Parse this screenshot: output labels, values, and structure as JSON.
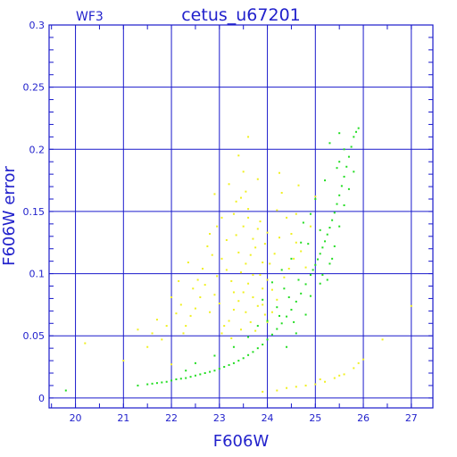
{
  "chart_data": {
    "type": "scatter",
    "title": "cetus_u67201",
    "corner_label": "WF3",
    "xlabel": "F606W",
    "ylabel": "F606W error",
    "xlim": [
      19.45,
      27.45
    ],
    "ylim": [
      -0.008,
      0.3
    ],
    "xticks": [
      20,
      21,
      22,
      23,
      24,
      25,
      26,
      27
    ],
    "yticks": [
      0,
      0.05,
      0.1,
      0.15,
      0.2,
      0.25,
      0.3
    ],
    "ytick_labels": [
      "0",
      "0.05",
      "0.1",
      "0.15",
      "0.2",
      "0.25",
      "0.3"
    ],
    "grid": true,
    "colors": {
      "axis": "#2222cc",
      "grid": "#1a1acc",
      "series_green": "#22dd22",
      "series_yellow": "#f0f020"
    },
    "series": [
      {
        "color": "yellow",
        "points": [
          [
            23.2,
            0.062
          ],
          [
            23.3,
            0.071
          ],
          [
            23.4,
            0.078
          ],
          [
            23.5,
            0.085
          ],
          [
            23.6,
            0.092
          ],
          [
            23.7,
            0.081
          ],
          [
            23.8,
            0.074
          ],
          [
            23.9,
            0.088
          ],
          [
            24.0,
            0.095
          ],
          [
            23.45,
            0.101
          ],
          [
            23.55,
            0.108
          ],
          [
            23.65,
            0.115
          ],
          [
            23.75,
            0.121
          ],
          [
            23.85,
            0.099
          ],
          [
            23.95,
            0.067
          ],
          [
            23.1,
            0.058
          ],
          [
            23.0,
            0.076
          ],
          [
            22.9,
            0.083
          ],
          [
            22.8,
            0.069
          ],
          [
            22.7,
            0.091
          ],
          [
            23.35,
            0.131
          ],
          [
            23.5,
            0.138
          ],
          [
            23.6,
            0.145
          ],
          [
            23.7,
            0.128
          ],
          [
            23.8,
            0.136
          ],
          [
            23.4,
            0.117
          ],
          [
            23.25,
            0.094
          ],
          [
            23.15,
            0.103
          ],
          [
            23.05,
            0.112
          ],
          [
            22.95,
            0.098
          ],
          [
            23.6,
            0.152
          ],
          [
            23.45,
            0.161
          ],
          [
            23.3,
            0.148
          ],
          [
            23.85,
            0.142
          ],
          [
            23.95,
            0.124
          ],
          [
            24.05,
            0.108
          ],
          [
            24.15,
            0.116
          ],
          [
            24.25,
            0.129
          ],
          [
            24.1,
            0.087
          ],
          [
            24.2,
            0.079
          ],
          [
            22.6,
            0.081
          ],
          [
            22.5,
            0.072
          ],
          [
            22.4,
            0.066
          ],
          [
            22.3,
            0.058
          ],
          [
            22.55,
            0.095
          ],
          [
            22.65,
            0.104
          ],
          [
            22.45,
            0.088
          ],
          [
            22.85,
            0.115
          ],
          [
            22.75,
            0.122
          ],
          [
            22.35,
            0.109
          ],
          [
            23.5,
            0.182
          ],
          [
            23.4,
            0.195
          ],
          [
            23.6,
            0.21
          ],
          [
            23.2,
            0.172
          ],
          [
            22.9,
            0.164
          ],
          [
            23.8,
            0.176
          ],
          [
            24.3,
            0.165
          ],
          [
            24.4,
            0.145
          ],
          [
            24.5,
            0.132
          ],
          [
            24.6,
            0.125
          ],
          [
            24.55,
            0.112
          ],
          [
            24.45,
            0.104
          ],
          [
            24.7,
            0.118
          ],
          [
            24.8,
            0.105
          ],
          [
            24.35,
            0.097
          ],
          [
            22.2,
            0.075
          ],
          [
            22.1,
            0.068
          ],
          [
            22.0,
            0.081
          ],
          [
            21.9,
            0.058
          ],
          [
            22.15,
            0.094
          ],
          [
            21.8,
            0.047
          ],
          [
            21.6,
            0.052
          ],
          [
            21.5,
            0.041
          ],
          [
            21.7,
            0.063
          ],
          [
            22.25,
            0.052
          ],
          [
            23.05,
            0.052
          ],
          [
            23.25,
            0.048
          ],
          [
            23.45,
            0.055
          ],
          [
            23.65,
            0.061
          ],
          [
            23.75,
            0.054
          ],
          [
            23.9,
            0.075
          ],
          [
            24.0,
            0.061
          ],
          [
            24.1,
            0.069
          ],
          [
            23.3,
            0.085
          ],
          [
            23.55,
            0.069
          ],
          [
            23.7,
            0.099
          ],
          [
            23.15,
            0.127
          ],
          [
            22.95,
            0.138
          ],
          [
            22.8,
            0.132
          ],
          [
            23.05,
            0.145
          ],
          [
            23.9,
            0.109
          ],
          [
            24.0,
            0.133
          ],
          [
            23.35,
            0.158
          ],
          [
            23.55,
            0.166
          ],
          [
            24.2,
            0.151
          ],
          [
            24.25,
            0.181
          ],
          [
            24.6,
            0.148
          ],
          [
            24.65,
            0.171
          ],
          [
            25.0,
            0.162
          ],
          [
            24.9,
            0.138
          ],
          [
            23.9,
            0.005
          ],
          [
            24.2,
            0.006
          ],
          [
            24.4,
            0.008
          ],
          [
            24.6,
            0.009
          ],
          [
            24.8,
            0.01
          ],
          [
            25.0,
            0.011
          ],
          [
            25.2,
            0.013
          ],
          [
            25.4,
            0.016
          ],
          [
            25.6,
            0.019
          ],
          [
            25.8,
            0.024
          ],
          [
            25.9,
            0.028
          ],
          [
            26.0,
            0.031
          ],
          [
            26.4,
            0.047
          ],
          [
            27.0,
            0.074
          ],
          [
            20.2,
            0.044
          ],
          [
            21.0,
            0.03
          ],
          [
            21.3,
            0.055
          ],
          [
            22.0,
            0.027
          ],
          [
            25.1,
            0.015
          ],
          [
            25.5,
            0.018
          ]
        ]
      },
      {
        "color": "green",
        "points": [
          [
            19.8,
            0.006
          ],
          [
            21.3,
            0.01
          ],
          [
            21.5,
            0.011
          ],
          [
            21.7,
            0.012
          ],
          [
            21.9,
            0.013
          ],
          [
            22.1,
            0.015
          ],
          [
            22.3,
            0.016
          ],
          [
            22.5,
            0.018
          ],
          [
            22.7,
            0.02
          ],
          [
            22.9,
            0.022
          ],
          [
            23.1,
            0.025
          ],
          [
            23.3,
            0.028
          ],
          [
            23.5,
            0.032
          ],
          [
            23.7,
            0.037
          ],
          [
            23.9,
            0.043
          ],
          [
            24.1,
            0.051
          ],
          [
            24.3,
            0.06
          ],
          [
            24.5,
            0.071
          ],
          [
            24.7,
            0.084
          ],
          [
            24.9,
            0.099
          ],
          [
            25.0,
            0.107
          ],
          [
            25.1,
            0.116
          ],
          [
            25.2,
            0.126
          ],
          [
            25.3,
            0.137
          ],
          [
            25.4,
            0.149
          ],
          [
            25.5,
            0.163
          ],
          [
            25.6,
            0.178
          ],
          [
            25.7,
            0.194
          ],
          [
            25.8,
            0.21
          ],
          [
            25.9,
            0.217
          ],
          [
            21.6,
            0.0115
          ],
          [
            21.8,
            0.0125
          ],
          [
            22.0,
            0.014
          ],
          [
            22.2,
            0.0155
          ],
          [
            22.4,
            0.017
          ],
          [
            22.6,
            0.019
          ],
          [
            22.8,
            0.021
          ],
          [
            23.0,
            0.0235
          ],
          [
            23.2,
            0.0265
          ],
          [
            23.4,
            0.03
          ],
          [
            23.6,
            0.0345
          ],
          [
            23.8,
            0.04
          ],
          [
            24.0,
            0.047
          ],
          [
            24.2,
            0.0555
          ],
          [
            24.4,
            0.0655
          ],
          [
            24.6,
            0.0775
          ],
          [
            24.8,
            0.0915
          ],
          [
            24.95,
            0.103
          ],
          [
            25.05,
            0.1115
          ],
          [
            25.15,
            0.121
          ],
          [
            25.25,
            0.1315
          ],
          [
            25.35,
            0.143
          ],
          [
            25.45,
            0.156
          ],
          [
            25.55,
            0.1705
          ],
          [
            25.65,
            0.186
          ],
          [
            25.75,
            0.202
          ],
          [
            25.85,
            0.214
          ],
          [
            25.25,
            0.095
          ],
          [
            25.3,
            0.108
          ],
          [
            25.4,
            0.122
          ],
          [
            24.8,
            0.067
          ],
          [
            24.6,
            0.052
          ],
          [
            24.4,
            0.041
          ],
          [
            24.2,
            0.073
          ],
          [
            24.0,
            0.062
          ],
          [
            23.8,
            0.058
          ],
          [
            24.9,
            0.082
          ],
          [
            25.1,
            0.092
          ],
          [
            25.5,
            0.138
          ],
          [
            25.6,
            0.155
          ],
          [
            25.7,
            0.168
          ],
          [
            25.8,
            0.182
          ],
          [
            24.5,
            0.112
          ],
          [
            24.7,
            0.125
          ],
          [
            24.9,
            0.148
          ],
          [
            25.0,
            0.16
          ],
          [
            25.2,
            0.175
          ],
          [
            25.5,
            0.19
          ],
          [
            25.3,
            0.205
          ],
          [
            24.65,
            0.095
          ],
          [
            24.35,
            0.088
          ],
          [
            23.9,
            0.079
          ],
          [
            24.1,
            0.093
          ],
          [
            24.3,
            0.103
          ],
          [
            24.55,
            0.061
          ],
          [
            23.6,
            0.049
          ],
          [
            23.3,
            0.041
          ],
          [
            22.9,
            0.034
          ],
          [
            22.5,
            0.028
          ],
          [
            22.3,
            0.022
          ],
          [
            25.35,
            0.112
          ],
          [
            25.15,
            0.099
          ],
          [
            24.85,
            0.124
          ],
          [
            25.1,
            0.135
          ],
          [
            24.75,
            0.141
          ],
          [
            25.5,
            0.213
          ],
          [
            25.6,
            0.2
          ],
          [
            25.45,
            0.185
          ],
          [
            24.45,
            0.081
          ],
          [
            24.25,
            0.066
          ]
        ]
      }
    ]
  }
}
